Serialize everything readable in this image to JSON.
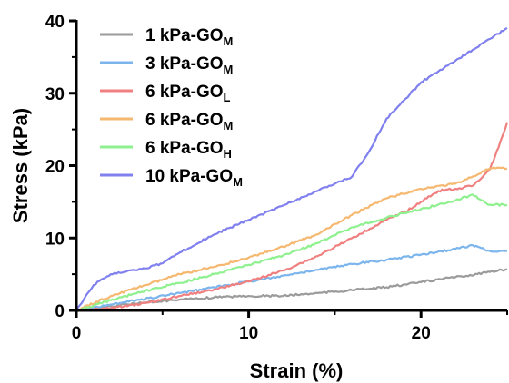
{
  "chart_data": {
    "type": "line",
    "xlabel": "Strain (%)",
    "ylabel": "Stress (kPa)",
    "xlim": [
      0,
      25
    ],
    "ylim": [
      0,
      40
    ],
    "xticks": [
      "0",
      "10",
      "20"
    ],
    "yticks": [
      "0",
      "10",
      "20",
      "30",
      "40"
    ],
    "grid": false,
    "legend_position": "top-left",
    "series": [
      {
        "name_main": "1 kPa-GO",
        "name_sub": "M",
        "color": "#9b9b9b",
        "x": [
          0,
          2,
          4,
          6,
          8,
          10,
          12,
          14,
          16,
          18,
          20,
          22,
          24,
          25
        ],
        "y": [
          0,
          0.6,
          1.1,
          1.5,
          1.8,
          2.0,
          2.0,
          2.4,
          2.8,
          3.2,
          3.9,
          4.6,
          5.3,
          5.7
        ]
      },
      {
        "name_main": "3 kPa-GO",
        "name_sub": "M",
        "color": "#7cb5ec",
        "x": [
          0,
          2,
          4,
          6,
          8,
          10,
          12,
          14,
          16,
          18,
          20,
          22,
          23,
          23.5,
          24,
          25
        ],
        "y": [
          0,
          0.8,
          1.6,
          2.4,
          3.2,
          4.0,
          4.8,
          5.6,
          6.4,
          7.0,
          7.7,
          8.5,
          9.0,
          8.6,
          8.2,
          8.2
        ]
      },
      {
        "name_main": "6 kPa-GO",
        "name_sub": "L",
        "color": "#f08080",
        "x": [
          0,
          2,
          4,
          6,
          8,
          10,
          12,
          14,
          16,
          18,
          19,
          20,
          21,
          22,
          23,
          24,
          24.5,
          25
        ],
        "y": [
          0,
          0.3,
          1.0,
          2.0,
          2.9,
          4.0,
          5.5,
          7.5,
          10.0,
          12.5,
          13.5,
          15.0,
          16.5,
          16.8,
          17.2,
          19.5,
          22.5,
          26.0
        ]
      },
      {
        "name_main": "6 kPa-GO",
        "name_sub": "M",
        "color": "#f5b870",
        "x": [
          0,
          2,
          4,
          6,
          8,
          10,
          12,
          14,
          16,
          18,
          20,
          22,
          23,
          24,
          25
        ],
        "y": [
          0,
          2.0,
          3.5,
          5.0,
          6.0,
          7.3,
          8.8,
          10.5,
          13.2,
          15.5,
          16.8,
          17.5,
          18.5,
          19.6,
          19.6
        ]
      },
      {
        "name_main": "6 kPa-GO",
        "name_sub": "H",
        "color": "#8ff08f",
        "x": [
          0,
          2,
          4,
          6,
          8,
          10,
          12,
          14,
          16,
          18,
          20,
          22,
          23,
          23.5,
          24,
          25
        ],
        "y": [
          0,
          1.4,
          2.7,
          3.8,
          5.0,
          6.3,
          7.6,
          9.3,
          11.5,
          12.8,
          14.0,
          15.2,
          16.0,
          15.2,
          14.6,
          14.6
        ]
      },
      {
        "name_main": "10 kPa-GO",
        "name_sub": "M",
        "color": "#8080ee",
        "x": [
          0,
          1,
          2,
          3,
          4,
          5,
          6,
          8,
          10,
          12,
          14,
          15,
          16,
          17,
          18,
          19,
          20,
          21,
          22,
          23,
          24,
          25
        ],
        "y": [
          0,
          3.5,
          5.0,
          5.5,
          5.8,
          6.5,
          8.0,
          10.5,
          12.5,
          14.5,
          16.5,
          17.5,
          18.5,
          22.0,
          26.5,
          29.0,
          31.5,
          33.0,
          34.5,
          36.0,
          37.5,
          39.0
        ]
      }
    ]
  }
}
